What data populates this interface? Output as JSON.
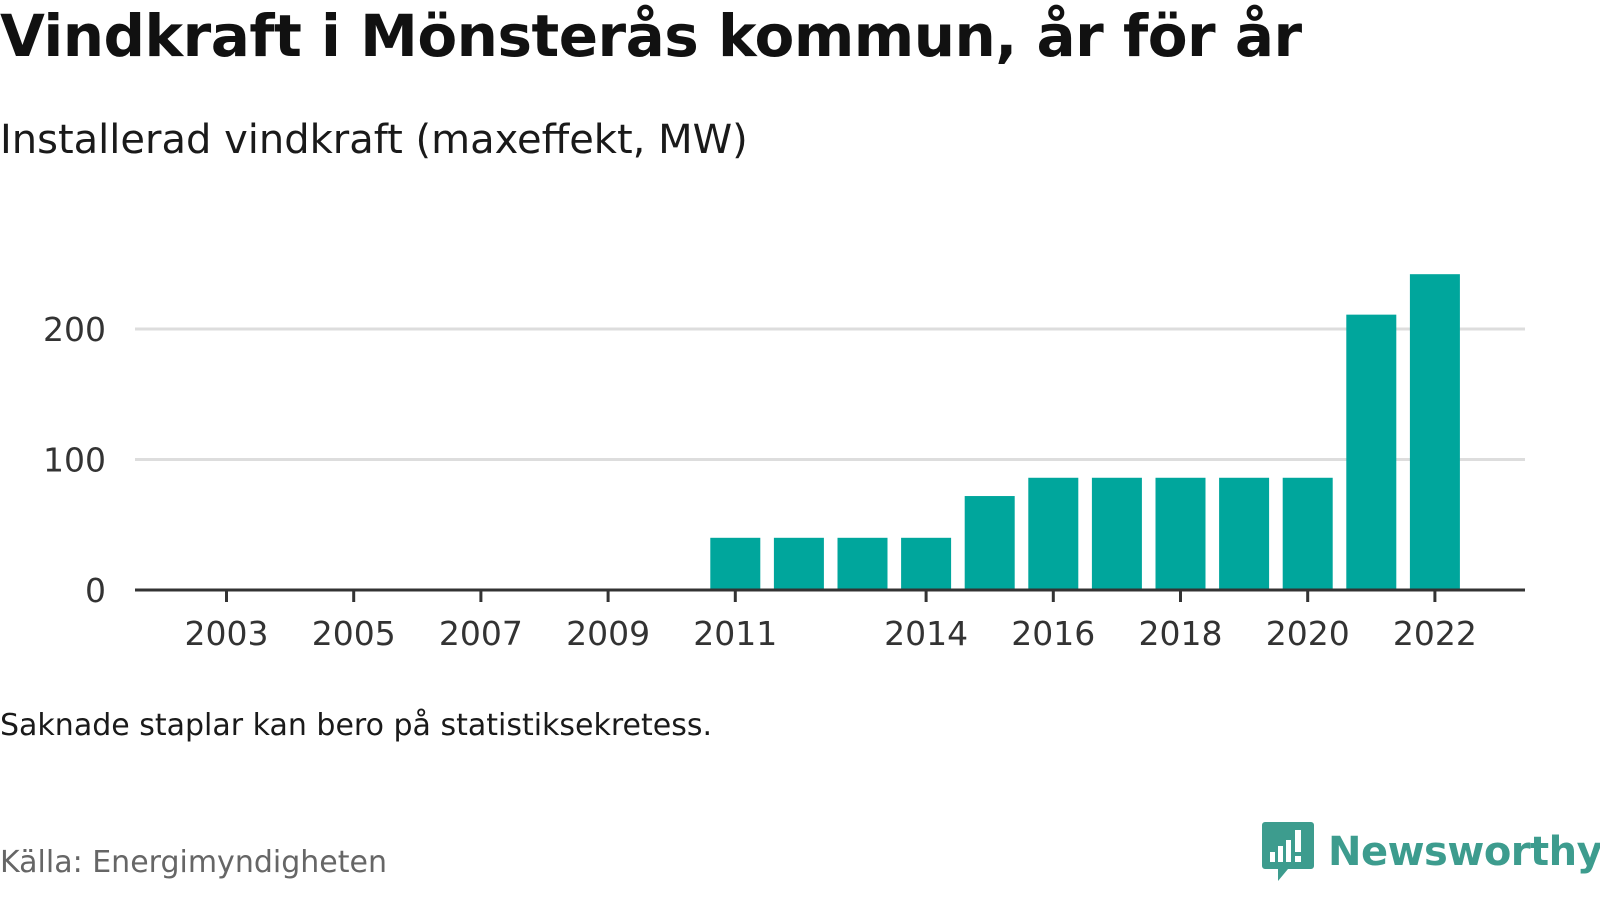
{
  "title": "Vindkraft i Mönsterås kommun, år för år",
  "subtitle": "Installerad vindkraft (maxeffekt, MW)",
  "note": "Saknade staplar kan bero på statistiksekretess.",
  "source": "Källa: Energimyndigheten",
  "brand": {
    "name": "Newsworthy",
    "icon": "newsworthy-logo-icon",
    "color": "#3d9c8e"
  },
  "chart_data": {
    "type": "bar",
    "categories": [
      "2003",
      "2004",
      "2005",
      "2006",
      "2007",
      "2008",
      "2009",
      "2010",
      "2011",
      "2012",
      "2013",
      "2014",
      "2015",
      "2016",
      "2017",
      "2018",
      "2019",
      "2020",
      "2021",
      "2022"
    ],
    "values": [
      null,
      null,
      null,
      null,
      null,
      null,
      null,
      null,
      40,
      40,
      40,
      40,
      72,
      86,
      86,
      86,
      86,
      86,
      211,
      242
    ],
    "x_tick_labels": [
      "2003",
      "2005",
      "2007",
      "2009",
      "2011",
      "2014",
      "2016",
      "2018",
      "2020",
      "2022"
    ],
    "y_ticks": [
      0,
      100,
      200
    ],
    "y_tick_labels": [
      "0",
      "100",
      "200"
    ],
    "ylim": [
      0,
      242
    ],
    "grid": true,
    "bar_color": "#00a69c",
    "grid_color": "#dddddd",
    "axis_color": "#333333"
  }
}
